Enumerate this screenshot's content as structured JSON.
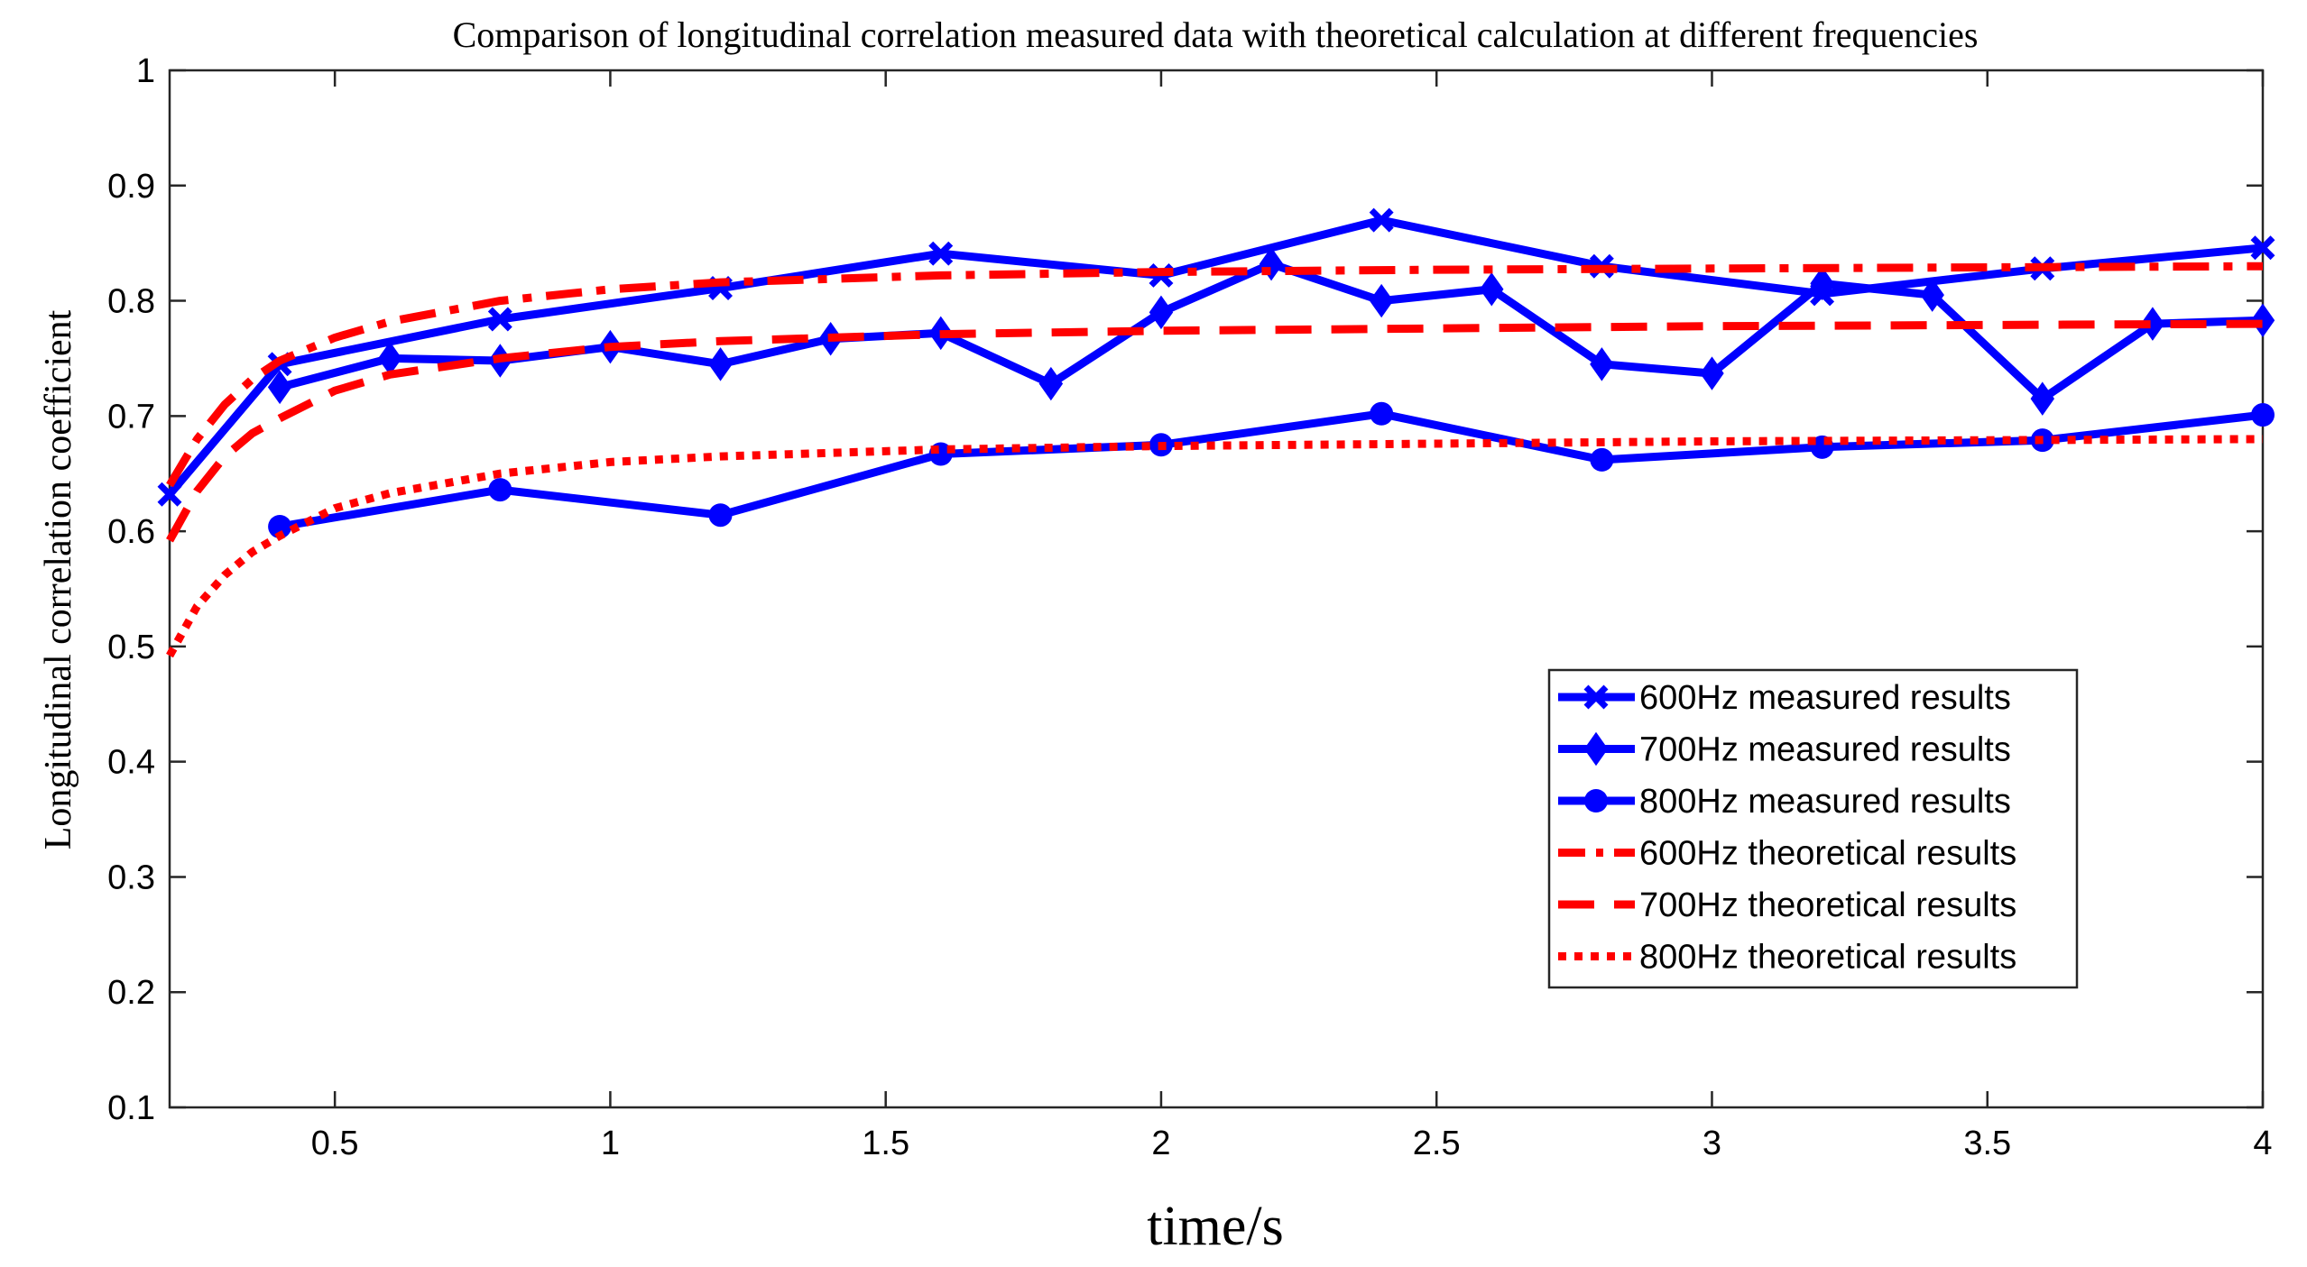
{
  "chart_data": {
    "type": "line",
    "title": "Comparison of longitudinal correlation measured data with theoretical calculation at different frequencies",
    "xlabel": "time/s",
    "ylabel": "Longitudinal correlation coefficient",
    "xlim": [
      0.2,
      4
    ],
    "ylim": [
      0.1,
      1
    ],
    "xticks": [
      0.5,
      1,
      1.5,
      2,
      2.5,
      3,
      3.5,
      4
    ],
    "yticks": [
      0.1,
      0.2,
      0.3,
      0.4,
      0.5,
      0.6,
      0.7,
      0.8,
      0.9,
      1
    ],
    "xtick_labels": [
      "0.5",
      "1",
      "1.5",
      "2",
      "2.5",
      "3",
      "3.5",
      "4"
    ],
    "ytick_labels": [
      "0.1",
      "0.2",
      "0.3",
      "0.4",
      "0.5",
      "0.6",
      "0.7",
      "0.8",
      "0.9",
      "1"
    ],
    "grid": false,
    "legend_position": "lower-right",
    "series": [
      {
        "name": "600Hz measured results",
        "color": "#0000ff",
        "style": "solid",
        "marker": "x",
        "x": [
          0.2,
          0.4,
          0.8,
          1.2,
          1.6,
          2.0,
          2.4,
          2.8,
          3.2,
          3.6,
          4.0
        ],
        "y": [
          0.632,
          0.745,
          0.784,
          0.811,
          0.841,
          0.822,
          0.87,
          0.83,
          0.806,
          0.828,
          0.846
        ]
      },
      {
        "name": "700Hz measured results",
        "color": "#0000ff",
        "style": "solid",
        "marker": "diamond",
        "x": [
          0.4,
          0.6,
          0.8,
          1.0,
          1.2,
          1.4,
          1.6,
          1.8,
          2.0,
          2.2,
          2.4,
          2.6,
          2.8,
          3.0,
          3.2,
          3.4,
          3.6,
          3.8,
          4.0
        ],
        "y": [
          0.725,
          0.75,
          0.748,
          0.76,
          0.745,
          0.767,
          0.772,
          0.728,
          0.79,
          0.832,
          0.8,
          0.81,
          0.745,
          0.737,
          0.815,
          0.805,
          0.715,
          0.78,
          0.783
        ]
      },
      {
        "name": "800Hz measured results",
        "color": "#0000ff",
        "style": "solid",
        "marker": "circle",
        "x": [
          0.4,
          0.8,
          1.2,
          1.6,
          2.0,
          2.4,
          2.8,
          3.2,
          3.6,
          4.0
        ],
        "y": [
          0.604,
          0.636,
          0.614,
          0.667,
          0.675,
          0.702,
          0.662,
          0.673,
          0.679,
          0.701
        ]
      },
      {
        "name": "600Hz theoretical results",
        "color": "#ff0000",
        "style": "dashdot",
        "x": [
          0.2,
          0.25,
          0.3,
          0.35,
          0.4,
          0.5,
          0.6,
          0.8,
          1.0,
          1.2,
          1.6,
          2.0,
          2.5,
          3.0,
          3.5,
          4.0
        ],
        "y": [
          0.64,
          0.68,
          0.71,
          0.732,
          0.748,
          0.768,
          0.782,
          0.8,
          0.81,
          0.816,
          0.822,
          0.825,
          0.827,
          0.828,
          0.829,
          0.83
        ]
      },
      {
        "name": "700Hz theoretical results",
        "color": "#ff0000",
        "style": "dashed",
        "x": [
          0.2,
          0.25,
          0.3,
          0.35,
          0.4,
          0.5,
          0.6,
          0.8,
          1.0,
          1.2,
          1.6,
          2.0,
          2.5,
          3.0,
          3.5,
          4.0
        ],
        "y": [
          0.592,
          0.635,
          0.665,
          0.685,
          0.698,
          0.722,
          0.736,
          0.75,
          0.76,
          0.765,
          0.771,
          0.774,
          0.776,
          0.778,
          0.779,
          0.78
        ]
      },
      {
        "name": "800Hz theoretical results",
        "color": "#ff0000",
        "style": "dotted",
        "x": [
          0.2,
          0.25,
          0.3,
          0.35,
          0.4,
          0.5,
          0.6,
          0.8,
          1.0,
          1.2,
          1.6,
          2.0,
          2.5,
          3.0,
          3.5,
          4.0
        ],
        "y": [
          0.492,
          0.535,
          0.562,
          0.582,
          0.596,
          0.62,
          0.633,
          0.65,
          0.66,
          0.665,
          0.671,
          0.674,
          0.676,
          0.678,
          0.679,
          0.68
        ]
      }
    ]
  }
}
